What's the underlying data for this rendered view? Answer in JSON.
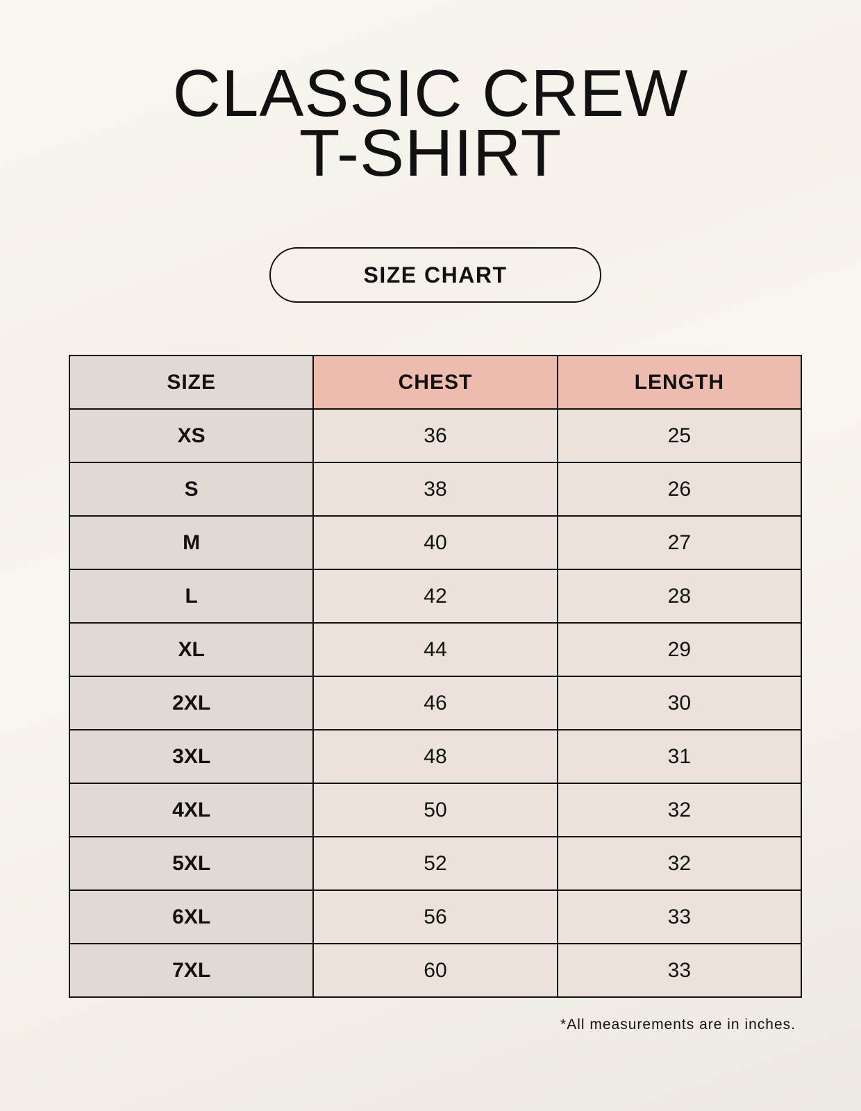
{
  "title": {
    "line1": "CLASSIC CREW",
    "line2": "T-SHIRT"
  },
  "badge": "SIZE CHART",
  "table": {
    "headers": [
      "SIZE",
      "CHEST",
      "LENGTH"
    ],
    "rows": [
      [
        "XS",
        "36",
        "25"
      ],
      [
        "S",
        "38",
        "26"
      ],
      [
        "M",
        "40",
        "27"
      ],
      [
        "L",
        "42",
        "28"
      ],
      [
        "XL",
        "44",
        "29"
      ],
      [
        "2XL",
        "46",
        "30"
      ],
      [
        "3XL",
        "48",
        "31"
      ],
      [
        "4XL",
        "50",
        "32"
      ],
      [
        "5XL",
        "52",
        "32"
      ],
      [
        "6XL",
        "56",
        "33"
      ],
      [
        "7XL",
        "60",
        "33"
      ]
    ]
  },
  "footnote": "*All measurements are in inches.",
  "colors": {
    "size_column": "#e1d9d3",
    "measure_header": "#edbcae",
    "value_cell": "#ebe3d9"
  }
}
